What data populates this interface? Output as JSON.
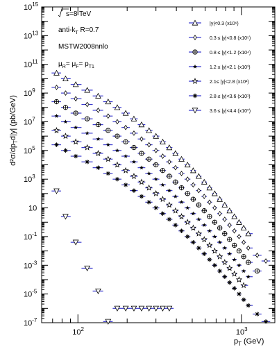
{
  "chart_data": {
    "type": "scatter",
    "x_scale": "log",
    "y_scale": "log",
    "xlim": [
      60,
      1600
    ],
    "ylim": [
      1e-07,
      1000000000000000.0
    ],
    "xlabel": "p",
    "xlabel_sub": "T",
    "xlabel_unit": "(GeV)",
    "ylabel": "d²σ/dp",
    "ylabel_sub": "T",
    "ylabel_tail": "d|y| (pb/GeV)",
    "x_ticks": [
      {
        "value": 100,
        "exp": "2"
      },
      {
        "value": 1000,
        "exp": "3"
      }
    ],
    "y_ticks": [
      {
        "value": 1000000000000000.0,
        "label": "10",
        "exp": "15"
      },
      {
        "value": 10000000000000.0,
        "label": "10",
        "exp": "13"
      },
      {
        "value": 100000000000.0,
        "label": "10",
        "exp": "11"
      },
      {
        "value": 1000000000.0,
        "label": "10",
        "exp": "9"
      },
      {
        "value": 10000000.0,
        "label": "10",
        "exp": "7"
      },
      {
        "value": 100000.0,
        "label": "10",
        "exp": "5"
      },
      {
        "value": 1000.0,
        "label": "10",
        "exp": "3"
      },
      {
        "value": 10,
        "label": "10",
        "exp": ""
      },
      {
        "value": 0.1,
        "label": "10",
        "exp": "-1"
      },
      {
        "value": 0.001,
        "label": "10",
        "exp": "-3"
      },
      {
        "value": 1e-05,
        "label": "10",
        "exp": "-5"
      },
      {
        "value": 1e-07,
        "label": "10",
        "exp": "-7"
      }
    ],
    "annotations": {
      "sqrt_s": "s=8 TeV",
      "algo": "anti-k",
      "algo_sub": "T",
      "algo_tail": " R=0.7",
      "pdf": "MSTW2008nnlo",
      "scale_mu_r": "μ",
      "scale_r_sub": "R",
      "scale_mid": "= μ",
      "scale_f_sub": "F",
      "scale_eq": "= p",
      "scale_t_sub": "T1"
    },
    "legend_position": "top-right",
    "series": [
      {
        "name": "|y|<0.3 (x10⁶)",
        "marker": "triangle-up",
        "x": [
          74,
          84,
          97,
          114,
          133,
          153,
          174,
          196,
          220,
          245,
          272,
          300,
          330,
          362,
          395,
          430,
          468,
          507,
          548,
          592,
          638,
          686,
          737,
          790,
          846,
          905,
          967,
          1032,
          1101
        ],
        "y": [
          25000000000.0,
          10000000000.0,
          4000000000.0,
          1600000000.0,
          630000000.0,
          250000000.0,
          100000000.0,
          40000000.0,
          16000000.0,
          6300000.0,
          2500000.0,
          1000000.0,
          400000.0,
          160000.0,
          63000.0,
          25000.0,
          10000.0,
          4000.0,
          1600.0,
          630.0,
          250.0,
          100.0,
          40,
          16,
          6.3,
          2.5,
          1.0,
          0.4,
          0.16
        ]
      },
      {
        "name": "0.3 ≤ |y|<0.8 (x10⁵)",
        "marker": "diamond",
        "x": [
          74,
          84,
          97,
          114,
          133,
          153,
          174,
          196,
          220,
          245,
          272,
          300,
          330,
          362,
          395,
          430,
          468,
          507,
          548,
          592,
          638,
          686,
          737,
          790,
          846,
          905,
          967,
          1032,
          1101,
          1248,
          1410
        ],
        "y": [
          2500000000.0,
          1000000000.0,
          400000000.0,
          160000000.0,
          63000000.0,
          25000000.0,
          10000000.0,
          4000000.0,
          1600000.0,
          630000.0,
          250000.0,
          100000.0,
          40000.0,
          16000.0,
          6300.0,
          2500.0,
          1000.0,
          400.0,
          160.0,
          63,
          25,
          10,
          4.0,
          1.6,
          0.63,
          0.25,
          0.1,
          0.04,
          0.016,
          0.005,
          0.002
        ]
      },
      {
        "name": "0.8 ≤ |y|<1.2 (x10⁴)",
        "marker": "circle-cross",
        "x": [
          74,
          84,
          97,
          114,
          133,
          153,
          174,
          196,
          220,
          245,
          272,
          300,
          330,
          362,
          395,
          430,
          468,
          507,
          548,
          592,
          638,
          686,
          737,
          790,
          846,
          905,
          967,
          1032,
          1101,
          1248
        ],
        "y": [
          250000000.0,
          100000000.0,
          40000000.0,
          16000000.0,
          6300000.0,
          2500000.0,
          1000000.0,
          400000.0,
          160000.0,
          63000.0,
          25000.0,
          10000.0,
          4000.0,
          1600.0,
          630.0,
          250.0,
          100.0,
          40,
          16,
          6.3,
          2.5,
          1.0,
          0.4,
          0.16,
          0.063,
          0.025,
          0.01,
          0.004,
          0.0016,
          0.0004
        ]
      },
      {
        "name": "1.2 ≤ |y|<2.1 (x10³)",
        "marker": "star",
        "x": [
          74,
          84,
          97,
          114,
          133,
          153,
          174,
          196,
          220,
          245,
          272,
          300,
          330,
          362,
          395,
          430,
          468,
          507,
          548,
          592,
          638,
          686,
          737,
          790,
          846,
          905,
          967,
          1032,
          1101
        ],
        "y": [
          25000000.0,
          10000000.0,
          4000000.0,
          1600000.0,
          630000.0,
          250000.0,
          100000.0,
          40000.0,
          16000.0,
          6300.0,
          2500.0,
          1000.0,
          400.0,
          160.0,
          63,
          25,
          10,
          4.0,
          1.6,
          0.63,
          0.25,
          0.1,
          0.04,
          0.016,
          0.0063,
          0.0025,
          0.001,
          0.0004,
          0.00016
        ]
      },
      {
        "name": "2.1≤ |y|<2.8 (x10²)",
        "marker": "star-large",
        "x": [
          74,
          84,
          97,
          114,
          133,
          153,
          174,
          196,
          220,
          245,
          272,
          300,
          330,
          362,
          395,
          430,
          468,
          507,
          548,
          592,
          638,
          686,
          737,
          790,
          846,
          905,
          967,
          1032
        ],
        "y": [
          2500000.0,
          1000000.0,
          400000.0,
          160000.0,
          63000.0,
          25000.0,
          10000.0,
          4000.0,
          1600.0,
          630.0,
          250.0,
          100.0,
          40,
          16,
          6.3,
          2.5,
          1.0,
          0.4,
          0.16,
          0.063,
          0.025,
          0.01,
          0.004,
          0.0016,
          0.00063,
          0.00025,
          0.0001,
          4e-05
        ]
      },
      {
        "name": "2.8 ≤ |y|<3.6 (x10¹)",
        "marker": "asterisk",
        "x": [
          74,
          84,
          97,
          114,
          133,
          153,
          174,
          196,
          220,
          245,
          272,
          300,
          330,
          362,
          395,
          430,
          468,
          507,
          548,
          592,
          638,
          686,
          737,
          790,
          846,
          905,
          967,
          1032,
          1101,
          1248,
          1410
        ],
        "y": [
          250000.0,
          100000.0,
          40000.0,
          16000.0,
          6300.0,
          2500.0,
          1000.0,
          400.0,
          160.0,
          63,
          25,
          10,
          4.0,
          1.6,
          0.63,
          0.25,
          0.1,
          0.04,
          0.016,
          0.0063,
          0.0025,
          0.001,
          0.0004,
          0.00016,
          6.3e-05,
          2.5e-05,
          1e-05,
          4e-06,
          1.6e-06,
          4e-07,
          1.2e-07
        ]
      },
      {
        "name": "3.6 ≤ |y|<4.4 (x10⁰)",
        "marker": "triangle-down",
        "x": [
          74,
          84,
          97,
          114,
          133,
          153,
          174,
          196,
          220,
          245,
          272,
          300,
          330,
          362
        ],
        "y": [
          150.0,
          2.5,
          0.04,
          0.00063,
          1.6e-05,
          1.2e-07,
          1e-06,
          1e-06,
          1e-06,
          1e-06,
          1e-06,
          1e-06,
          1e-06,
          1e-06
        ]
      }
    ]
  }
}
